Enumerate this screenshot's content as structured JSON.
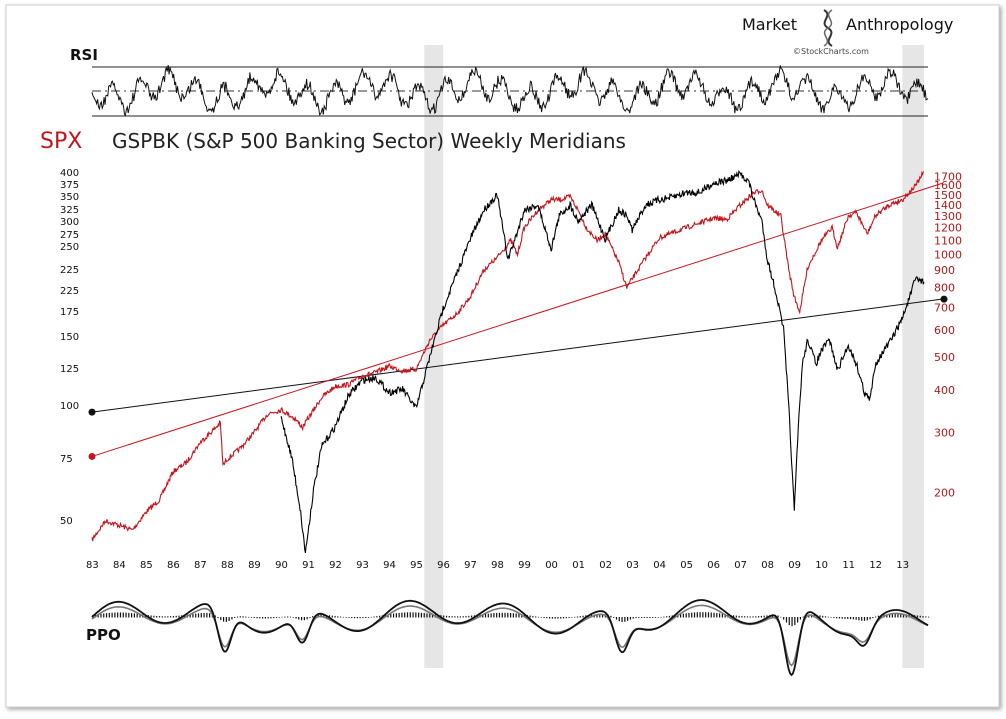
{
  "chart_data": {
    "type": "line",
    "title_spx": "SPX",
    "title_main": "GSPBK (S&P 500 Banking Sector) Weekly Meridians",
    "brand_left": "Market",
    "brand_right": "Anthropology",
    "credit": "©StockCharts.com",
    "rsi_label": "RSI",
    "ppo_label": "PPO",
    "x_ticks": [
      "83",
      "84",
      "85",
      "86",
      "87",
      "88",
      "89",
      "90",
      "91",
      "92",
      "93",
      "94",
      "95",
      "96",
      "97",
      "98",
      "99",
      "00",
      "01",
      "02",
      "03",
      "04",
      "05",
      "06",
      "07",
      "08",
      "09",
      "10",
      "11",
      "12",
      "13"
    ],
    "left_axis_ticks": [
      "400",
      "375",
      "350",
      "325",
      "300",
      "275",
      "250",
      "225",
      "225",
      "175",
      "150",
      "125",
      "100",
      "75",
      "50"
    ],
    "left_axis": {
      "scale": "log",
      "range": [
        45,
        400
      ]
    },
    "right_axis_ticks": [
      "1700",
      "1600",
      "1500",
      "1400",
      "1300",
      "1200",
      "1100",
      "1000",
      "900",
      "800",
      "700",
      "600",
      "500",
      "400",
      "300",
      "200"
    ],
    "right_axis": {
      "scale": "log",
      "range": [
        140,
        1750
      ]
    },
    "shaded_periods": [
      [
        "1995.3",
        "1996.0"
      ],
      [
        "2013.0",
        "2013.8"
      ]
    ],
    "series": [
      {
        "name": "GSPBK",
        "color": "#000000",
        "x": [
          1990.0,
          1990.4,
          1990.7,
          1990.9,
          1991.2,
          1991.5,
          1992.0,
          1992.5,
          1993.0,
          1993.5,
          1994.0,
          1994.5,
          1995.0,
          1995.5,
          1996.0,
          1996.5,
          1997.0,
          1997.5,
          1998.0,
          1998.4,
          1998.7,
          1999.0,
          1999.5,
          2000.0,
          2000.3,
          2000.7,
          2001.0,
          2001.5,
          2002.0,
          2002.5,
          2002.8,
          2003.0,
          2003.5,
          2004.0,
          2004.5,
          2005.0,
          2005.5,
          2006.0,
          2006.5,
          2007.0,
          2007.3,
          2007.5,
          2007.8,
          2008.0,
          2008.3,
          2008.6,
          2008.8,
          2009.0,
          2009.15,
          2009.3,
          2009.5,
          2009.8,
          2010.0,
          2010.3,
          2010.6,
          2011.0,
          2011.3,
          2011.6,
          2011.8,
          2012.0,
          2012.3,
          2012.6,
          2013.0,
          2013.3,
          2013.5,
          2013.8
        ],
        "values": [
          95,
          75,
          56,
          43,
          62,
          80,
          90,
          108,
          118,
          120,
          110,
          112,
          100,
          135,
          180,
          220,
          270,
          320,
          350,
          240,
          275,
          320,
          330,
          255,
          310,
          330,
          300,
          330,
          270,
          320,
          310,
          285,
          330,
          340,
          345,
          355,
          355,
          375,
          380,
          395,
          380,
          340,
          300,
          240,
          200,
          160,
          100,
          55,
          90,
          130,
          150,
          130,
          140,
          150,
          125,
          145,
          130,
          110,
          105,
          130,
          140,
          150,
          170,
          195,
          215,
          210
        ]
      },
      {
        "name": "SPX",
        "color": "#b21a1a",
        "x": [
          1983.0,
          1983.5,
          1984.0,
          1984.5,
          1985.0,
          1985.5,
          1986.0,
          1986.5,
          1987.0,
          1987.4,
          1987.75,
          1987.85,
          1988.0,
          1988.5,
          1989.0,
          1989.5,
          1990.0,
          1990.5,
          1990.8,
          1991.0,
          1991.5,
          1992.0,
          1992.5,
          1993.0,
          1993.5,
          1994.0,
          1994.5,
          1995.0,
          1995.5,
          1996.0,
          1996.5,
          1997.0,
          1997.5,
          1998.0,
          1998.5,
          1998.75,
          1999.0,
          1999.5,
          2000.0,
          2000.3,
          2000.7,
          2001.0,
          2001.3,
          2001.7,
          2002.0,
          2002.5,
          2002.8,
          2003.0,
          2003.5,
          2004.0,
          2005.0,
          2006.0,
          2006.5,
          2007.0,
          2007.5,
          2007.8,
          2008.0,
          2008.5,
          2008.8,
          2009.0,
          2009.2,
          2009.5,
          2010.0,
          2010.4,
          2010.6,
          2011.0,
          2011.3,
          2011.7,
          2012.0,
          2012.5,
          2013.0,
          2013.5,
          2013.8
        ],
        "values": [
          145,
          165,
          160,
          155,
          175,
          190,
          230,
          245,
          280,
          300,
          320,
          240,
          250,
          270,
          300,
          340,
          350,
          330,
          310,
          330,
          380,
          410,
          415,
          440,
          450,
          470,
          455,
          460,
          560,
          620,
          670,
          750,
          900,
          980,
          1100,
          1000,
          1200,
          1350,
          1450,
          1450,
          1480,
          1350,
          1200,
          1100,
          1150,
          950,
          800,
          850,
          980,
          1120,
          1200,
          1280,
          1270,
          1400,
          1520,
          1550,
          1400,
          1300,
          900,
          750,
          680,
          920,
          1100,
          1200,
          1050,
          1300,
          1330,
          1150,
          1300,
          1400,
          1450,
          1600,
          1750
        ]
      }
    ],
    "trendlines": [
      {
        "name": "black meridian",
        "axis": "left",
        "from": [
          1983.0,
          98
        ],
        "to": [
          2013.95,
          190
        ]
      },
      {
        "name": "red meridian",
        "axis": "right",
        "from": [
          1983.0,
          255
        ],
        "to": [
          2013.95,
          1620
        ]
      }
    ]
  }
}
